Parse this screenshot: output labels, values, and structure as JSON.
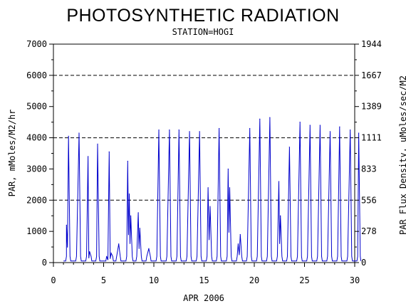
{
  "chart_data": {
    "type": "line",
    "title": "PHOTOSYNTHETIC RADIATION",
    "subtitle": "STATION=HOGI",
    "xlabel": "APR 2006",
    "ylabel_left": "PAR, mMoles/M2/hr",
    "ylabel_right": "PAR Flux Density, uMoles/sec/M2",
    "xlim": [
      0,
      30
    ],
    "ylim": [
      0,
      7000
    ],
    "x_ticks": [
      0,
      5,
      10,
      15,
      20,
      25,
      30
    ],
    "y_ticks_left": [
      0,
      1000,
      2000,
      3000,
      4000,
      5000,
      6000,
      7000
    ],
    "y_ticks_right": [
      0,
      278,
      556,
      833,
      1111,
      1389,
      1667,
      1944
    ],
    "dashed_gridlines_y": [
      2000,
      4000,
      6000
    ],
    "line_color": "#0000cc",
    "daily_peaks": [
      {
        "day": 1,
        "peaks": [
          [
            0.3,
            1200
          ],
          [
            0.5,
            4050
          ]
        ]
      },
      {
        "day": 2,
        "peaks": [
          [
            0.55,
            4150
          ]
        ]
      },
      {
        "day": 3,
        "peaks": [
          [
            0.45,
            3400
          ],
          [
            0.6,
            350
          ]
        ]
      },
      {
        "day": 4,
        "peaks": [
          [
            0.4,
            3800
          ]
        ]
      },
      {
        "day": 5,
        "peaks": [
          [
            0.3,
            200
          ],
          [
            0.55,
            3550
          ],
          [
            0.75,
            300
          ]
        ]
      },
      {
        "day": 6,
        "peaks": [
          [
            0.5,
            600
          ]
        ]
      },
      {
        "day": 7,
        "peaks": [
          [
            0.4,
            3250
          ],
          [
            0.55,
            2200
          ],
          [
            0.7,
            1500
          ]
        ]
      },
      {
        "day": 8,
        "peaks": [
          [
            0.45,
            1600
          ],
          [
            0.6,
            1100
          ]
        ]
      },
      {
        "day": 9,
        "peaks": [
          [
            0.5,
            450
          ]
        ]
      },
      {
        "day": 10,
        "peaks": [
          [
            0.5,
            4250
          ]
        ]
      },
      {
        "day": 11,
        "peaks": [
          [
            0.55,
            4250
          ]
        ]
      },
      {
        "day": 12,
        "peaks": [
          [
            0.5,
            4250
          ]
        ]
      },
      {
        "day": 13,
        "peaks": [
          [
            0.55,
            4200
          ]
        ]
      },
      {
        "day": 14,
        "peaks": [
          [
            0.55,
            4200
          ]
        ]
      },
      {
        "day": 15,
        "peaks": [
          [
            0.4,
            2400
          ],
          [
            0.6,
            1800
          ]
        ]
      },
      {
        "day": 16,
        "peaks": [
          [
            0.5,
            4300
          ]
        ]
      },
      {
        "day": 17,
        "peaks": [
          [
            0.4,
            3000
          ],
          [
            0.55,
            2400
          ]
        ]
      },
      {
        "day": 18,
        "peaks": [
          [
            0.4,
            600
          ],
          [
            0.6,
            900
          ]
        ]
      },
      {
        "day": 19,
        "peaks": [
          [
            0.55,
            4300
          ]
        ]
      },
      {
        "day": 20,
        "peaks": [
          [
            0.55,
            4600
          ]
        ]
      },
      {
        "day": 21,
        "peaks": [
          [
            0.55,
            4650
          ]
        ]
      },
      {
        "day": 22,
        "peaks": [
          [
            0.45,
            2600
          ],
          [
            0.6,
            1500
          ]
        ]
      },
      {
        "day": 23,
        "peaks": [
          [
            0.5,
            3700
          ]
        ]
      },
      {
        "day": 24,
        "peaks": [
          [
            0.55,
            4500
          ]
        ]
      },
      {
        "day": 25,
        "peaks": [
          [
            0.55,
            4400
          ]
        ]
      },
      {
        "day": 26,
        "peaks": [
          [
            0.55,
            4400
          ]
        ]
      },
      {
        "day": 27,
        "peaks": [
          [
            0.55,
            4200
          ]
        ]
      },
      {
        "day": 28,
        "peaks": [
          [
            0.5,
            4350
          ]
        ]
      },
      {
        "day": 29,
        "peaks": [
          [
            0.55,
            4250
          ]
        ]
      },
      {
        "day": 30,
        "peaks": [
          [
            0.4,
            4150
          ]
        ]
      }
    ]
  }
}
